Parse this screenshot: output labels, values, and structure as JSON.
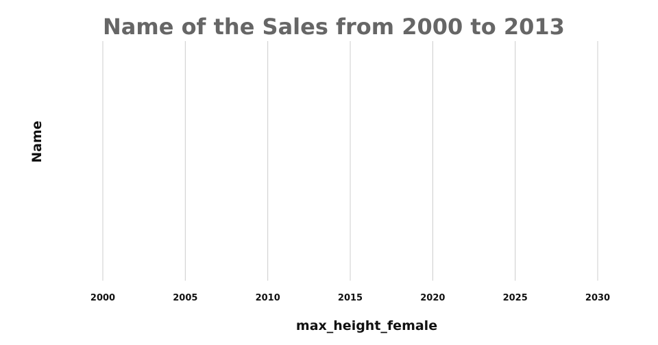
{
  "chart_data": {
    "type": "bar",
    "title": "Name of the Sales from 2000 to 2013",
    "xlabel": "max_height_female",
    "ylabel": "Name",
    "x_ticks": [
      2000,
      2005,
      2010,
      2015,
      2020,
      2025,
      2030
    ],
    "xlim": [
      2000,
      2030
    ],
    "categories": [],
    "values": [],
    "grid": true,
    "grid_axis": "x",
    "legend": "none",
    "colors": {
      "title": "#666666",
      "text": "#111111",
      "grid": "#cccccc"
    }
  }
}
